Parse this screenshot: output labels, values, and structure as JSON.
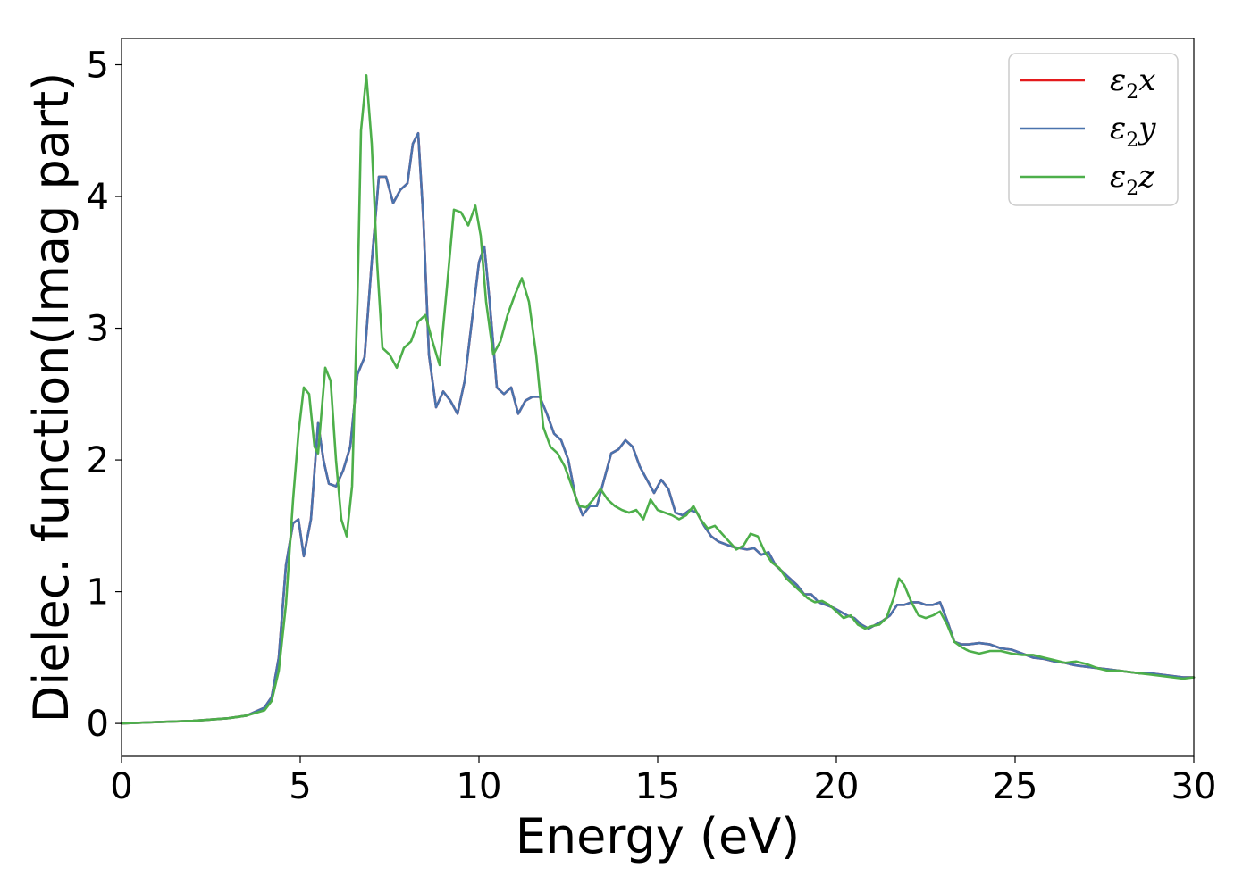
{
  "chart_data": {
    "type": "line",
    "title": "",
    "xlabel": "Energy (eV)",
    "ylabel": "Dielec. function(Imag part)",
    "xlim": [
      0,
      30
    ],
    "ylim": [
      -0.25,
      5.2
    ],
    "xticks": [
      0,
      5,
      10,
      15,
      20,
      25,
      30
    ],
    "yticks": [
      0,
      1,
      2,
      3,
      4,
      5
    ],
    "grid": false,
    "legend_position": "top-right",
    "series": [
      {
        "name": "ε₂x",
        "legend_main": "ε",
        "legend_sub": "2",
        "legend_var": "x",
        "color": "#e41a1c",
        "x": [
          0,
          1,
          2,
          3,
          3.5,
          4,
          4.2,
          4.4,
          4.6,
          4.8,
          4.95,
          5.1,
          5.3,
          5.5,
          5.65,
          5.8,
          6.0,
          6.2,
          6.4,
          6.6,
          6.8,
          7.0,
          7.2,
          7.4,
          7.6,
          7.8,
          8.0,
          8.15,
          8.3,
          8.45,
          8.6,
          8.8,
          9.0,
          9.2,
          9.4,
          9.6,
          9.8,
          10.0,
          10.15,
          10.3,
          10.5,
          10.7,
          10.9,
          11.1,
          11.3,
          11.5,
          11.7,
          11.9,
          12.1,
          12.3,
          12.5,
          12.7,
          12.9,
          13.1,
          13.3,
          13.5,
          13.7,
          13.9,
          14.1,
          14.3,
          14.5,
          14.7,
          14.9,
          15.1,
          15.3,
          15.5,
          15.7,
          15.9,
          16.1,
          16.3,
          16.5,
          16.7,
          16.9,
          17.1,
          17.3,
          17.5,
          17.7,
          17.9,
          18.1,
          18.3,
          18.5,
          18.7,
          18.9,
          19.1,
          19.3,
          19.5,
          19.7,
          19.9,
          20.1,
          20.3,
          20.5,
          20.7,
          20.9,
          21.1,
          21.3,
          21.5,
          21.7,
          21.9,
          22.1,
          22.3,
          22.5,
          22.7,
          22.9,
          23.1,
          23.3,
          23.5,
          23.7,
          24.0,
          24.3,
          24.6,
          24.9,
          25.2,
          25.5,
          25.8,
          26.1,
          26.4,
          26.7,
          27.0,
          27.3,
          27.6,
          27.9,
          28.2,
          28.5,
          28.8,
          29.1,
          29.4,
          29.7,
          30
        ],
        "y": [
          0.0,
          0.01,
          0.02,
          0.04,
          0.06,
          0.12,
          0.2,
          0.5,
          1.2,
          1.52,
          1.55,
          1.27,
          1.55,
          2.28,
          2.0,
          1.82,
          1.8,
          1.92,
          2.1,
          2.65,
          2.78,
          3.5,
          4.15,
          4.15,
          3.95,
          4.05,
          4.1,
          4.4,
          4.48,
          3.8,
          2.8,
          2.4,
          2.52,
          2.45,
          2.35,
          2.6,
          3.05,
          3.5,
          3.62,
          3.2,
          2.55,
          2.5,
          2.55,
          2.35,
          2.45,
          2.48,
          2.48,
          2.35,
          2.2,
          2.15,
          2.0,
          1.72,
          1.58,
          1.65,
          1.65,
          1.85,
          2.05,
          2.08,
          2.15,
          2.1,
          1.95,
          1.85,
          1.75,
          1.85,
          1.78,
          1.6,
          1.58,
          1.62,
          1.6,
          1.5,
          1.42,
          1.38,
          1.36,
          1.34,
          1.33,
          1.32,
          1.33,
          1.28,
          1.3,
          1.2,
          1.15,
          1.1,
          1.05,
          0.98,
          0.98,
          0.92,
          0.9,
          0.88,
          0.85,
          0.82,
          0.8,
          0.75,
          0.72,
          0.75,
          0.78,
          0.82,
          0.9,
          0.9,
          0.92,
          0.92,
          0.9,
          0.9,
          0.92,
          0.78,
          0.62,
          0.6,
          0.6,
          0.61,
          0.6,
          0.57,
          0.56,
          0.53,
          0.5,
          0.49,
          0.47,
          0.46,
          0.44,
          0.43,
          0.42,
          0.41,
          0.4,
          0.39,
          0.38,
          0.38,
          0.37,
          0.36,
          0.35,
          0.35
        ]
      },
      {
        "name": "ε₂y",
        "legend_main": "ε",
        "legend_sub": "2",
        "legend_var": "y",
        "color": "#4a73ad",
        "x": [
          0,
          1,
          2,
          3,
          3.5,
          4,
          4.2,
          4.4,
          4.6,
          4.8,
          4.95,
          5.1,
          5.3,
          5.5,
          5.65,
          5.8,
          6.0,
          6.2,
          6.4,
          6.6,
          6.8,
          7.0,
          7.2,
          7.4,
          7.6,
          7.8,
          8.0,
          8.15,
          8.3,
          8.45,
          8.6,
          8.8,
          9.0,
          9.2,
          9.4,
          9.6,
          9.8,
          10.0,
          10.15,
          10.3,
          10.5,
          10.7,
          10.9,
          11.1,
          11.3,
          11.5,
          11.7,
          11.9,
          12.1,
          12.3,
          12.5,
          12.7,
          12.9,
          13.1,
          13.3,
          13.5,
          13.7,
          13.9,
          14.1,
          14.3,
          14.5,
          14.7,
          14.9,
          15.1,
          15.3,
          15.5,
          15.7,
          15.9,
          16.1,
          16.3,
          16.5,
          16.7,
          16.9,
          17.1,
          17.3,
          17.5,
          17.7,
          17.9,
          18.1,
          18.3,
          18.5,
          18.7,
          18.9,
          19.1,
          19.3,
          19.5,
          19.7,
          19.9,
          20.1,
          20.3,
          20.5,
          20.7,
          20.9,
          21.1,
          21.3,
          21.5,
          21.7,
          21.9,
          22.1,
          22.3,
          22.5,
          22.7,
          22.9,
          23.1,
          23.3,
          23.5,
          23.7,
          24.0,
          24.3,
          24.6,
          24.9,
          25.2,
          25.5,
          25.8,
          26.1,
          26.4,
          26.7,
          27.0,
          27.3,
          27.6,
          27.9,
          28.2,
          28.5,
          28.8,
          29.1,
          29.4,
          29.7,
          30
        ],
        "y": [
          0.0,
          0.01,
          0.02,
          0.04,
          0.06,
          0.12,
          0.2,
          0.5,
          1.2,
          1.52,
          1.55,
          1.27,
          1.55,
          2.28,
          2.0,
          1.82,
          1.8,
          1.92,
          2.1,
          2.65,
          2.78,
          3.5,
          4.15,
          4.15,
          3.95,
          4.05,
          4.1,
          4.4,
          4.48,
          3.8,
          2.8,
          2.4,
          2.52,
          2.45,
          2.35,
          2.6,
          3.05,
          3.5,
          3.62,
          3.2,
          2.55,
          2.5,
          2.55,
          2.35,
          2.45,
          2.48,
          2.48,
          2.35,
          2.2,
          2.15,
          2.0,
          1.72,
          1.58,
          1.65,
          1.65,
          1.85,
          2.05,
          2.08,
          2.15,
          2.1,
          1.95,
          1.85,
          1.75,
          1.85,
          1.78,
          1.6,
          1.58,
          1.62,
          1.6,
          1.5,
          1.42,
          1.38,
          1.36,
          1.34,
          1.33,
          1.32,
          1.33,
          1.28,
          1.3,
          1.2,
          1.15,
          1.1,
          1.05,
          0.98,
          0.98,
          0.92,
          0.9,
          0.88,
          0.85,
          0.82,
          0.8,
          0.75,
          0.72,
          0.75,
          0.78,
          0.82,
          0.9,
          0.9,
          0.92,
          0.92,
          0.9,
          0.9,
          0.92,
          0.78,
          0.62,
          0.6,
          0.6,
          0.61,
          0.6,
          0.57,
          0.56,
          0.53,
          0.5,
          0.49,
          0.47,
          0.46,
          0.44,
          0.43,
          0.42,
          0.41,
          0.4,
          0.39,
          0.38,
          0.38,
          0.37,
          0.36,
          0.35,
          0.35
        ]
      },
      {
        "name": "ε₂z",
        "legend_main": "ε",
        "legend_sub": "2",
        "legend_var": "z",
        "color": "#4daf4a",
        "x": [
          0,
          1,
          2,
          3,
          3.5,
          4,
          4.2,
          4.4,
          4.6,
          4.8,
          4.95,
          5.1,
          5.25,
          5.4,
          5.5,
          5.7,
          5.85,
          6.0,
          6.15,
          6.3,
          6.45,
          6.6,
          6.7,
          6.85,
          7.0,
          7.15,
          7.3,
          7.5,
          7.7,
          7.9,
          8.1,
          8.3,
          8.5,
          8.7,
          8.9,
          9.1,
          9.3,
          9.5,
          9.7,
          9.9,
          10.05,
          10.2,
          10.4,
          10.6,
          10.8,
          11.0,
          11.2,
          11.4,
          11.6,
          11.8,
          12.0,
          12.2,
          12.4,
          12.6,
          12.8,
          13.0,
          13.2,
          13.4,
          13.6,
          13.8,
          14.0,
          14.2,
          14.4,
          14.6,
          14.8,
          15.0,
          15.2,
          15.4,
          15.6,
          15.8,
          16.0,
          16.2,
          16.4,
          16.6,
          16.8,
          17.0,
          17.2,
          17.4,
          17.6,
          17.8,
          18.0,
          18.2,
          18.4,
          18.6,
          18.8,
          19.0,
          19.2,
          19.4,
          19.6,
          19.8,
          20.0,
          20.2,
          20.4,
          20.6,
          20.8,
          21.0,
          21.2,
          21.4,
          21.6,
          21.75,
          21.9,
          22.1,
          22.3,
          22.5,
          22.7,
          22.9,
          23.1,
          23.3,
          23.5,
          23.7,
          24.0,
          24.3,
          24.6,
          24.9,
          25.2,
          25.5,
          25.8,
          26.1,
          26.4,
          26.7,
          27.0,
          27.3,
          27.6,
          27.9,
          28.2,
          28.5,
          28.8,
          29.1,
          29.4,
          29.7,
          30
        ],
        "y": [
          0.0,
          0.01,
          0.02,
          0.04,
          0.06,
          0.1,
          0.17,
          0.4,
          0.9,
          1.7,
          2.2,
          2.55,
          2.5,
          2.1,
          2.05,
          2.7,
          2.6,
          2.0,
          1.55,
          1.42,
          1.8,
          3.2,
          4.5,
          4.92,
          4.4,
          3.5,
          2.85,
          2.8,
          2.7,
          2.85,
          2.9,
          3.05,
          3.1,
          2.9,
          2.72,
          3.3,
          3.9,
          3.88,
          3.78,
          3.93,
          3.7,
          3.2,
          2.8,
          2.9,
          3.1,
          3.25,
          3.38,
          3.2,
          2.8,
          2.25,
          2.1,
          2.05,
          1.95,
          1.8,
          1.65,
          1.64,
          1.7,
          1.78,
          1.7,
          1.65,
          1.62,
          1.6,
          1.62,
          1.55,
          1.7,
          1.62,
          1.6,
          1.58,
          1.55,
          1.58,
          1.65,
          1.55,
          1.48,
          1.5,
          1.44,
          1.38,
          1.32,
          1.35,
          1.44,
          1.42,
          1.3,
          1.22,
          1.18,
          1.1,
          1.05,
          1.0,
          0.95,
          0.92,
          0.93,
          0.9,
          0.85,
          0.8,
          0.82,
          0.75,
          0.72,
          0.74,
          0.75,
          0.8,
          0.95,
          1.1,
          1.05,
          0.92,
          0.82,
          0.8,
          0.82,
          0.85,
          0.75,
          0.62,
          0.58,
          0.55,
          0.53,
          0.55,
          0.55,
          0.53,
          0.52,
          0.52,
          0.5,
          0.48,
          0.46,
          0.47,
          0.45,
          0.42,
          0.4,
          0.4,
          0.39,
          0.38,
          0.37,
          0.36,
          0.35,
          0.34,
          0.35
        ]
      }
    ]
  }
}
